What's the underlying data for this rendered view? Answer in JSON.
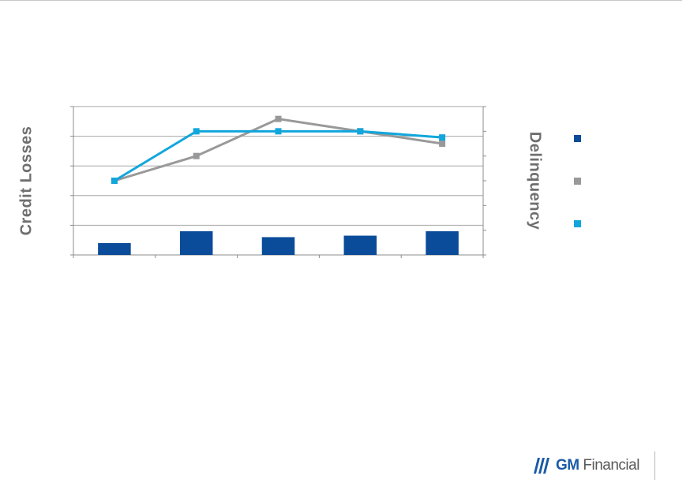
{
  "chart_data": {
    "type": "bar",
    "categories": [
      "",
      "",
      "",
      "",
      ""
    ],
    "left_axis": {
      "label": "Credit Losses",
      "ylim": [
        0,
        5
      ],
      "ticks": [
        0,
        1,
        2,
        3,
        4,
        5
      ],
      "tick_labels": []
    },
    "right_axis": {
      "label": "Delinquency",
      "ylim": [
        0,
        6
      ],
      "ticks": [
        0,
        1,
        2,
        3,
        4,
        5,
        6
      ],
      "tick_labels": []
    },
    "series": [
      {
        "type": "bar",
        "axis": "left",
        "color": "#0b4c9a",
        "values": [
          0.4,
          0.8,
          0.6,
          0.65,
          0.8
        ]
      },
      {
        "type": "line",
        "axis": "right",
        "color": "#999999",
        "marker": "square",
        "values": [
          3.0,
          4.0,
          5.5,
          5.0,
          4.5
        ]
      },
      {
        "type": "line",
        "axis": "right",
        "color": "#12a6dc",
        "marker": "square",
        "values": [
          3.0,
          5.0,
          5.0,
          5.0,
          4.75
        ]
      }
    ],
    "grid": true,
    "legend_position": "right"
  },
  "logo": {
    "text": "GM Financial",
    "mark": "stripes-icon"
  }
}
